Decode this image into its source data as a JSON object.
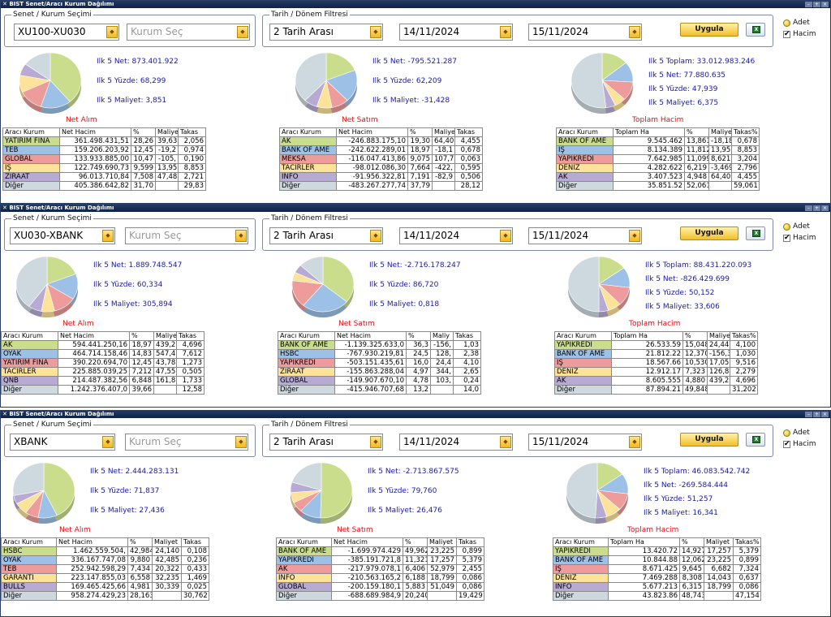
{
  "title": "BIST Senet/Aracı Kurum Dağılımı",
  "window_controls": [
    "–",
    "+",
    "×"
  ],
  "icons": {
    "close": "close-icon",
    "combo": "chevron-down-icon",
    "excel": "excel-icon",
    "radio": "radio-icon",
    "check": "checkbox-icon"
  },
  "colors": {
    "row": [
      "#c9dd8d",
      "#9cc0e6",
      "#ed9b9b",
      "#fde299",
      "#b7aad3",
      "#cdd9de"
    ],
    "stats": "#1a1aa0",
    "pie_title": "#e01010",
    "button": "#f3bf2a"
  },
  "labels": {
    "group_senet": "Senet / Kurum Seçimi",
    "group_tarih": "Tarih / Dönem Filtresi",
    "kurum_placeholder": "Kurum Seç",
    "period": "2 Tarih Arası",
    "date_from": "14/11/2024",
    "date_to": "15/11/2024",
    "apply": "Uygula",
    "excel": "X",
    "adet": "Adet",
    "hacim": "Hacim"
  },
  "windows": [
    {
      "senet": "XU100-XU030",
      "panels": [
        {
          "title": "Net Alım",
          "slices": [
            39,
            16,
            13,
            10,
            7,
            15
          ],
          "stats": [
            "Ilk 5 Net: 873.401.922",
            "Ilk 5 Yüzde: 68,299",
            "Ilk 5 Maliyet: 3,851"
          ],
          "headers": [
            "Aracı Kurum",
            "Net Hacim",
            "%",
            "Maliye",
            "Takas"
          ],
          "rows": [
            [
              "YATIRIM FİNA",
              "361.498.431,51",
              "28,26",
              "39,63",
              "2,056"
            ],
            [
              "TEB",
              "159.206.203,92",
              "12,45",
              "-19,2",
              "0,974"
            ],
            [
              "GLOBAL",
              "133.933.885,00",
              "10,47",
              "-105,",
              "0,190"
            ],
            [
              "İŞ",
              "122.749.690,73",
              "9,599",
              "13,95",
              "8,853"
            ],
            [
              "ZİRAAT",
              "96.013.710,84",
              "7,508",
              "47,48",
              "2,721"
            ],
            [
              "Diğer",
              "405.386.642,82",
              "31,70",
              "",
              "29,83"
            ]
          ]
        },
        {
          "title": "Net Satım",
          "slices": [
            19,
            19,
            9,
            8,
            7,
            38
          ],
          "stats": [
            "Ilk 5 Net: -795.521.287",
            "Ilk 5 Yüzde: 62,209",
            "Ilk 5 Maliyet: -31,428"
          ],
          "headers": [
            "Aracı Kurum",
            "Net Hacim",
            "%",
            "Maliye",
            "Takas"
          ],
          "rows": [
            [
              "AK",
              "-246.883.175,10",
              "19,30",
              "64,40",
              "4,455"
            ],
            [
              "BANK OF AME",
              "-242.622.289,01",
              "18,97",
              "-18,1",
              "0,678"
            ],
            [
              "MEKSA",
              "-116.047.413,86",
              "9,075",
              "107,7",
              "0,063"
            ],
            [
              "TACİRLER",
              "-98.012.086,30",
              "7,664",
              "-422,",
              "0,595"
            ],
            [
              "İNFO",
              "-91.956.322,81",
              "7,191",
              "-82,9",
              "0,506"
            ],
            [
              "Diğer",
              "-483.267.277,74",
              "37,79",
              "",
              "28,12"
            ]
          ]
        },
        {
          "title": "Toplam Hacim",
          "slices": [
            14,
            12,
            11,
            6,
            5,
            52
          ],
          "stats": [
            "Ilk 5 Toplam: 33.012.983.246",
            "Ilk 5 Net: 77.880.635",
            "Ilk 5 Yüzde: 47,939",
            "Ilk 5 Maliyet: 6,375"
          ],
          "headers": [
            "Aracı Kurum",
            "Toplam Ha",
            "%",
            "Maliyet",
            "Takas%"
          ],
          "rows": [
            [
              "BANK OF AME",
              "9.545.462",
              "13,861",
              "-18,187",
              "0,678"
            ],
            [
              "İŞ",
              "8.134.389",
              "11,812",
              "13,959",
              "8,853"
            ],
            [
              "YAPIKREDİ",
              "7.642.985",
              "11,099",
              "8,621",
              "3,204"
            ],
            [
              "DENİZ",
              "4.282.622",
              "6,219",
              "-3,469",
              "2,796"
            ],
            [
              "AK",
              "3.407.523",
              "4,948",
              "64,409",
              "4,455"
            ],
            [
              "Diğer",
              "35.851.52",
              "52,061",
              "",
              "59,061"
            ]
          ]
        }
      ]
    },
    {
      "senet": "XU030-XBANK",
      "panels": [
        {
          "title": "Net Alım",
          "slices": [
            19,
            15,
            12,
            7,
            7,
            40
          ],
          "stats": [
            "Ilk 5 Net: 1.889.748.547",
            "Ilk 5 Yüzde: 60,334",
            "Ilk 5 Maliyet: 305,894"
          ],
          "headers": [
            "Aracı Kurum",
            "Net Hacim",
            "%",
            "Maliye",
            "Takas"
          ],
          "rows": [
            [
              "AK",
              "594.441.250,16",
              "18,97",
              "439,2",
              "4,696"
            ],
            [
              "OYAK",
              "464.714.158,46",
              "14,83",
              "547,4",
              "7,612"
            ],
            [
              "YATIRIM FİNA",
              "390.220.694,70",
              "12,45",
              "43,78",
              "1,273"
            ],
            [
              "TACİRLER",
              "225.885.039,25",
              "7,212",
              "47,55",
              "0,505"
            ],
            [
              "QNB",
              "214.487.382,56",
              "6,848",
              "161,8",
              "1,733"
            ],
            [
              "Diğer",
              "1.242.376.407,0",
              "39,66",
              "",
              "12,58"
            ]
          ]
        },
        {
          "title": "Net Satım",
          "slices": [
            36,
            25,
            16,
            5,
            5,
            13
          ],
          "stats": [
            "Ilk 5 Net: -2.716.178.247",
            "Ilk 5 Yüzde: 86,720",
            "Ilk 5 Maliyet: 0,818"
          ],
          "headers": [
            "Aracı Kurum",
            "Net Hacim",
            "%",
            "Maliy",
            "Takas"
          ],
          "rows": [
            [
              "BANK OF AME",
              "-1.139.325.633,0",
              "36,3",
              "-156,",
              "1,03"
            ],
            [
              "HSBC",
              "-767.930.219,81",
              "24,5",
              "128,",
              "2,38"
            ],
            [
              "YAPIKREDİ",
              "-503.151.435,61",
              "16,0",
              "24,4",
              "4,10"
            ],
            [
              "ZİRAAT",
              "-155.863.288,04",
              "4,97",
              "344,",
              "2,65"
            ],
            [
              "GLOBAL",
              "-149.907.670,10",
              "4,78",
              "103,",
              "0,24"
            ],
            [
              "Diğer",
              "-415.946.707,68",
              "13,2",
              "",
              "14,0"
            ]
          ]
        },
        {
          "title": "Toplam Hacim",
          "slices": [
            15,
            12,
            11,
            7,
            5,
            50
          ],
          "stats": [
            "Ilk 5 Toplam: 88.431.220.093",
            "Ilk 5 Net: -826.429.699",
            "Ilk 5 Yüzde: 50,152",
            "Ilk 5 Maliyet: 33,606"
          ],
          "headers": [
            "Aracı Kurum",
            "Toplam Ha",
            "%",
            "Maliyet",
            "Takas%"
          ],
          "rows": [
            [
              "YAPIKREDİ",
              "26.533.59",
              "15,048",
              "24,440",
              "4,100"
            ],
            [
              "BANK OF AME",
              "21.812.22",
              "12,370",
              "-156,39",
              "1,030"
            ],
            [
              "İŞ",
              "18.567.66",
              "10,530",
              "17,058",
              "9,516"
            ],
            [
              "DENİZ",
              "12.912.17",
              "7,323",
              "126,839",
              "2,279"
            ],
            [
              "AK",
              "8.605.555",
              "4,880",
              "439,275",
              "4,696"
            ],
            [
              "Diğer",
              "87.894.21",
              "49,848",
              "",
              "31,202"
            ]
          ]
        }
      ]
    },
    {
      "senet": "XBANK",
      "panels": [
        {
          "title": "Net Alım",
          "slices": [
            43,
            10,
            7,
            7,
            5,
            28
          ],
          "stats": [
            "Ilk 5 Net: 2.444.283.131",
            "Ilk 5 Yüzde: 71,837",
            "Ilk 5 Maliyet: 27,436"
          ],
          "headers": [
            "Aracı Kurum",
            "Net Hacim",
            "%",
            "Maliyet",
            "Takas"
          ],
          "rows": [
            [
              "HSBC",
              "1.462.559.504,",
              "42,984",
              "24,140",
              "0,108"
            ],
            [
              "OYAK",
              "336.167.747,08",
              "9,880",
              "42,485",
              "0,236"
            ],
            [
              "TEB",
              "252.942.598,29",
              "7,434",
              "20,322",
              "0,433"
            ],
            [
              "GARANTİ",
              "223.147.855,03",
              "6,558",
              "32,235",
              "1,469"
            ],
            [
              "BULLS",
              "169.465.425,66",
              "4,981",
              "30,339",
              "0,025"
            ],
            [
              "Diğer",
              "958.274.429,23",
              "28,163",
              "",
              "30,762"
            ]
          ]
        },
        {
          "title": "Net Satım",
          "slices": [
            50,
            11,
            6,
            6,
            6,
            20
          ],
          "stats": [
            "Ilk 5 Net: -2.713.867.575",
            "Ilk 5 Yüzde: 79,760",
            "Ilk 5 Maliyet: 26,476"
          ],
          "headers": [
            "Aracı Kurum",
            "Net Hacim",
            "%",
            "Maliyet",
            "Takas"
          ],
          "rows": [
            [
              "BANK OF AME",
              "-1.699.974.429",
              "49,962",
              "23,225",
              "0,899"
            ],
            [
              "YAPIKREDİ",
              "-385.191.721,8",
              "11,321",
              "17,257",
              "5,379"
            ],
            [
              "AK",
              "-217.979.078,1",
              "6,406",
              "52,979",
              "2,455"
            ],
            [
              "İNFO",
              "-210.563.165,2",
              "6,188",
              "18,799",
              "0,086"
            ],
            [
              "GLOBAL",
              "-200.159.180,1",
              "5,883",
              "51,049",
              "0,086"
            ],
            [
              "Diğer",
              "-688.689.984,9",
              "20,240",
              "",
              "19,429"
            ]
          ]
        },
        {
          "title": "Toplam Hacim",
          "slices": [
            15,
            12,
            10,
            8,
            6,
            49
          ],
          "stats": [
            "Ilk 5 Toplam: 46.083.542.742",
            "Ilk 5 Net: -269.584.444",
            "Ilk 5 Yüzde: 51,257",
            "Ilk 5 Maliyet: 16,341"
          ],
          "headers": [
            "Aracı Kurum",
            "Toplam Ha",
            "%",
            "Maliyet",
            "Takas%"
          ],
          "rows": [
            [
              "YAPIKREDİ",
              "13.420.72",
              "14,927",
              "17,257",
              "5,379"
            ],
            [
              "BANK OF AME",
              "10.844.88",
              "12,062",
              "23,225",
              "0,899"
            ],
            [
              "İŞ",
              "8.671.425",
              "9,645",
              "6,682",
              "7,324"
            ],
            [
              "DENİZ",
              "7.469.288",
              "8,308",
              "14,043",
              "0,637"
            ],
            [
              "İNFO",
              "5.677.213",
              "6,315",
              "18,799",
              "0,086"
            ],
            [
              "Diğer",
              "43.823.86",
              "48,743",
              "",
              "47,154"
            ]
          ]
        }
      ]
    }
  ]
}
